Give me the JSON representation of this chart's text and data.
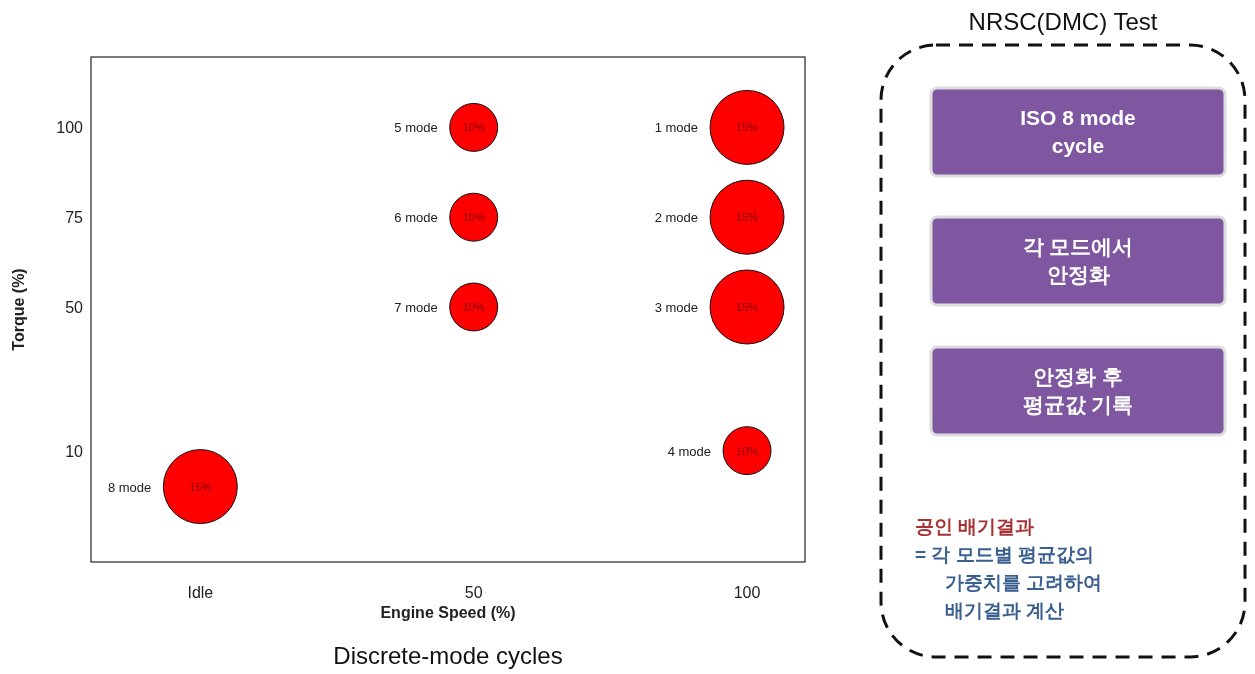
{
  "chart_data": [
    {
      "type": "bubble",
      "xlabel": "Engine Speed (%)",
      "ylabel": "Torque (%)",
      "color": "#ff0000",
      "x": [
        100,
        100,
        100,
        100,
        50,
        50,
        50,
        0
      ],
      "values": [
        100,
        75,
        50,
        10,
        100,
        75,
        50,
        0
      ],
      "sizes": [
        1,
        1,
        1,
        0.42,
        0.42,
        0.42,
        0.42,
        1
      ],
      "xlim": [
        -20,
        110.6
      ],
      "ylim": [
        -21,
        119.6
      ],
      "xticks": [
        {
          "value": 0,
          "label": "Idle"
        },
        50,
        100
      ],
      "yticks": [
        10,
        50,
        75,
        100
      ],
      "annotations": [
        {
          "text": "15%",
          "x": 100,
          "y": 100
        },
        {
          "text": "15%",
          "x": 100,
          "y": 75
        },
        {
          "text": "15%",
          "x": 100,
          "y": 50
        },
        {
          "text": "10%",
          "x": 100,
          "y": 10
        },
        {
          "text": "10%",
          "x": 50,
          "y": 100
        },
        {
          "text": "10%",
          "x": 50,
          "y": 75
        },
        {
          "text": "10%",
          "x": 50,
          "y": 50
        },
        {
          "text": "15%",
          "x": 0,
          "y": 0
        },
        "1 mode",
        "2 mode",
        "3 mode",
        "4 mode",
        "5 mode",
        "6 mode",
        "7 mode",
        "8 mode",
        "Discrete-mode cycles"
      ]
    },
    {
      "type": "other",
      "title": "NRSC(DMC) Test",
      "annotations": [
        "ISO 8 mode\ncycle",
        "각 모드에서\n안정화",
        "안정화 후\n평균값 기록",
        "공인  배기결과",
        "= 각 모드별 평균값의\n가중치를 고려하여\n배기결과 계산"
      ]
    }
  ]
}
